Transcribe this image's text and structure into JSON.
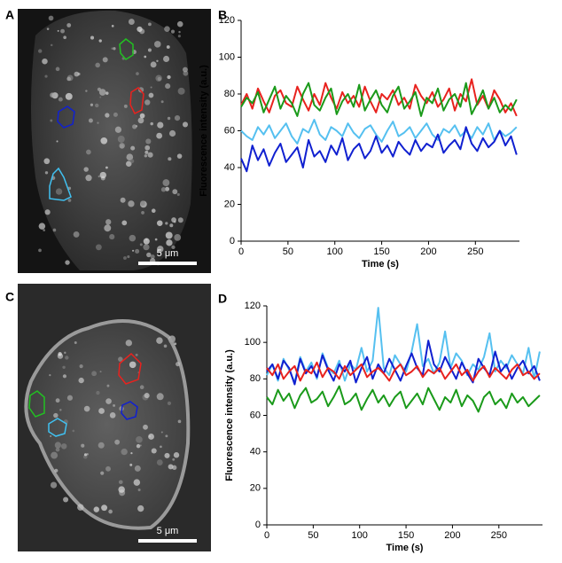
{
  "figure": {
    "panels": [
      "A",
      "B",
      "C",
      "D"
    ],
    "scale_bars": [
      "5 μm",
      "5 μm"
    ]
  },
  "chart_data": [
    {
      "type": "line",
      "xlabel": "Time (s)",
      "ylabel": "Fluorescence intensity (a.u.)",
      "xlim": [
        0,
        297
      ],
      "ylim": [
        0,
        120
      ],
      "xticks": [
        0,
        50,
        100,
        150,
        200,
        250
      ],
      "yticks": [
        0,
        20,
        40,
        60,
        80,
        100,
        120
      ],
      "x": [
        0,
        6,
        12,
        18,
        24,
        30,
        36,
        42,
        48,
        54,
        60,
        66,
        72,
        78,
        84,
        90,
        96,
        102,
        108,
        114,
        120,
        126,
        132,
        138,
        144,
        150,
        156,
        162,
        168,
        174,
        180,
        186,
        192,
        198,
        204,
        210,
        216,
        222,
        228,
        234,
        240,
        246,
        252,
        258,
        264,
        270,
        276,
        282,
        288,
        294
      ],
      "series": [
        {
          "color": "#e8221e",
          "values": [
            74,
            80,
            72,
            83,
            76,
            70,
            79,
            82,
            75,
            73,
            84,
            77,
            71,
            80,
            74,
            86,
            78,
            72,
            81,
            75,
            79,
            73,
            84,
            76,
            70,
            80,
            77,
            82,
            74,
            78,
            72,
            85,
            79,
            75,
            81,
            73,
            77,
            83,
            71,
            80,
            76,
            88,
            74,
            79,
            72,
            82,
            77,
            70,
            75,
            68
          ]
        },
        {
          "color": "#1a9a1a",
          "values": [
            73,
            78,
            75,
            81,
            70,
            77,
            84,
            72,
            79,
            75,
            68,
            80,
            86,
            74,
            71,
            78,
            83,
            69,
            76,
            80,
            73,
            85,
            71,
            77,
            82,
            74,
            70,
            79,
            84,
            72,
            76,
            81,
            68,
            78,
            75,
            83,
            71,
            77,
            80,
            73,
            86,
            69,
            75,
            82,
            72,
            78,
            70,
            74,
            71,
            77
          ]
        },
        {
          "color": "#55c0f0",
          "values": [
            60,
            57,
            55,
            62,
            58,
            63,
            56,
            60,
            64,
            57,
            53,
            61,
            59,
            66,
            58,
            55,
            62,
            60,
            57,
            64,
            59,
            56,
            61,
            63,
            58,
            54,
            60,
            65,
            57,
            59,
            62,
            56,
            60,
            64,
            58,
            55,
            61,
            59,
            63,
            57,
            60,
            56,
            62,
            58,
            64,
            55,
            60,
            57,
            59,
            62
          ]
        },
        {
          "color": "#1020d0",
          "values": [
            45,
            38,
            52,
            44,
            50,
            41,
            48,
            53,
            43,
            47,
            51,
            40,
            55,
            46,
            49,
            43,
            52,
            47,
            56,
            44,
            50,
            53,
            45,
            49,
            57,
            48,
            52,
            46,
            54,
            50,
            47,
            55,
            49,
            53,
            51,
            58,
            48,
            52,
            55,
            50,
            62,
            53,
            49,
            56,
            51,
            54,
            60,
            52,
            57,
            47
          ]
        }
      ]
    },
    {
      "type": "line",
      "xlabel": "Time (s)",
      "ylabel": "Fluorescence intensity (a.u.)",
      "xlim": [
        0,
        297
      ],
      "ylim": [
        0,
        120
      ],
      "xticks": [
        0,
        50,
        100,
        150,
        200,
        250
      ],
      "yticks": [
        0,
        20,
        40,
        60,
        80,
        100,
        120
      ],
      "x": [
        0,
        6,
        12,
        18,
        24,
        30,
        36,
        42,
        48,
        54,
        60,
        66,
        72,
        78,
        84,
        90,
        96,
        102,
        108,
        114,
        120,
        126,
        132,
        138,
        144,
        150,
        156,
        162,
        168,
        174,
        180,
        186,
        192,
        198,
        204,
        210,
        216,
        222,
        228,
        234,
        240,
        246,
        252,
        258,
        264,
        270,
        276,
        282,
        288,
        294
      ],
      "series": [
        {
          "color": "#55c0f0",
          "values": [
            82,
            88,
            79,
            91,
            85,
            78,
            92,
            84,
            89,
            80,
            94,
            86,
            83,
            90,
            79,
            88,
            85,
            97,
            84,
            90,
            119,
            86,
            82,
            93,
            88,
            84,
            95,
            110,
            87,
            91,
            83,
            89,
            106,
            86,
            94,
            90,
            82,
            88,
            85,
            92,
            105,
            84,
            90,
            86,
            93,
            88,
            83,
            97,
            80,
            95
          ]
        },
        {
          "color": "#1020d0",
          "values": [
            84,
            88,
            80,
            90,
            86,
            77,
            91,
            83,
            87,
            81,
            93,
            85,
            79,
            88,
            84,
            90,
            78,
            86,
            92,
            80,
            88,
            83,
            91,
            85,
            79,
            87,
            94,
            86,
            82,
            101,
            88,
            84,
            92,
            86,
            80,
            89,
            83,
            78,
            91,
            86,
            82,
            95,
            84,
            88,
            80,
            86,
            90,
            83,
            87,
            79
          ]
        },
        {
          "color": "#e8221e",
          "values": [
            86,
            82,
            88,
            80,
            84,
            87,
            79,
            85,
            83,
            89,
            81,
            86,
            84,
            80,
            87,
            82,
            85,
            88,
            81,
            84,
            86,
            83,
            79,
            85,
            88,
            82,
            84,
            87,
            81,
            85,
            83,
            86,
            80,
            84,
            88,
            82,
            85,
            79,
            84,
            87,
            81,
            86,
            83,
            80,
            85,
            88,
            82,
            84,
            80,
            83
          ]
        },
        {
          "color": "#1a9a1a",
          "values": [
            70,
            66,
            74,
            68,
            72,
            64,
            71,
            75,
            67,
            69,
            73,
            65,
            70,
            76,
            66,
            68,
            72,
            63,
            69,
            74,
            67,
            71,
            65,
            70,
            73,
            64,
            68,
            72,
            66,
            75,
            69,
            63,
            70,
            67,
            74,
            65,
            71,
            68,
            62,
            70,
            73,
            66,
            69,
            64,
            72,
            67,
            70,
            65,
            68,
            71
          ]
        }
      ]
    }
  ]
}
